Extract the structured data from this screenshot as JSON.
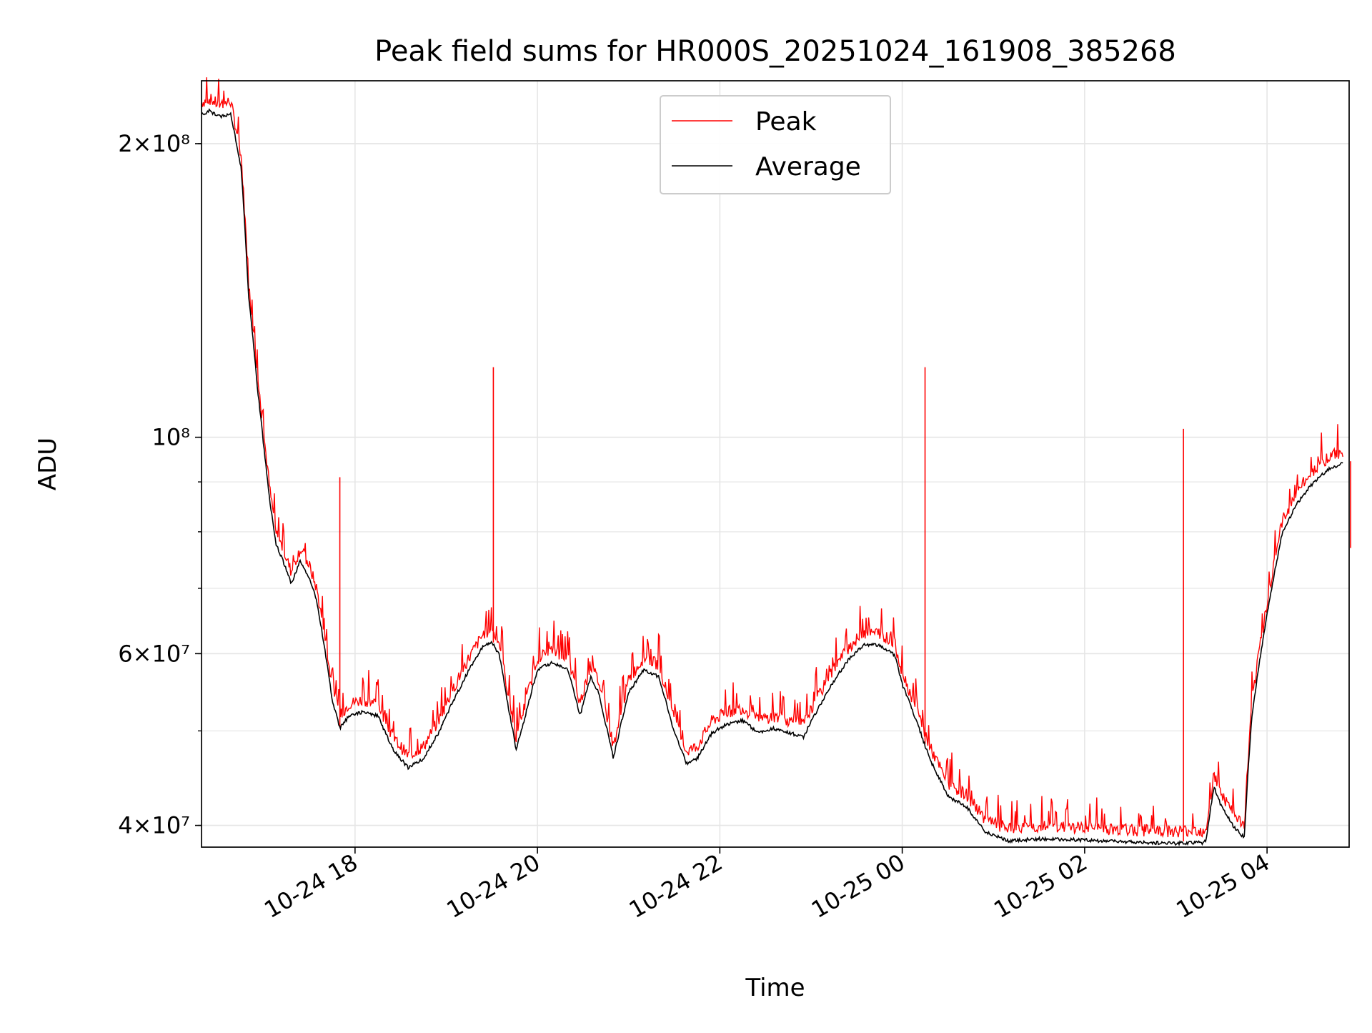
{
  "chart_data": {
    "type": "line",
    "title": "Peak field sums for HR000S_20251024_161908_385268",
    "xlabel": "Time",
    "ylabel": "ADU",
    "yscale": "log",
    "ylim": [
      38000000,
      232000000
    ],
    "xlim": [
      "2025-10-24 16:19",
      "2025-10-25 04:54"
    ],
    "x_tick_labels": [
      "10-24 18",
      "10-24 20",
      "10-24 22",
      "10-25 00",
      "10-25 02",
      "10-25 04"
    ],
    "x_tick_values": [
      "2025-10-24 18:00",
      "2025-10-24 20:00",
      "2025-10-24 22:00",
      "2025-10-25 00:00",
      "2025-10-25 02:00",
      "2025-10-25 04:00"
    ],
    "y_tick_labels": [
      "4×10⁷",
      "6×10⁷",
      "10⁸",
      "2×10⁸"
    ],
    "y_tick_values": [
      40000000,
      60000000,
      100000000,
      200000000
    ],
    "grid": true,
    "legend": {
      "placement": "top-center",
      "entries": [
        "Peak",
        "Average"
      ]
    },
    "series": [
      {
        "name": "Average",
        "color": "#000000",
        "points": [
          [
            "2025-10-24 16:19",
            215000000
          ],
          [
            "2025-10-24 16:24",
            217000000
          ],
          [
            "2025-10-24 16:30",
            214000000
          ],
          [
            "2025-10-24 16:36",
            215000000
          ],
          [
            "2025-10-24 16:38",
            216000000
          ],
          [
            "2025-10-24 16:45",
            190000000
          ],
          [
            "2025-10-24 16:50",
            140000000
          ],
          [
            "2025-10-24 16:56",
            112000000
          ],
          [
            "2025-10-24 17:00",
            98000000
          ],
          [
            "2025-10-24 17:04",
            86000000
          ],
          [
            "2025-10-24 17:08",
            78000000
          ],
          [
            "2025-10-24 17:14",
            74000000
          ],
          [
            "2025-10-24 17:18",
            71000000
          ],
          [
            "2025-10-24 17:24",
            75000000
          ],
          [
            "2025-10-24 17:30",
            72000000
          ],
          [
            "2025-10-24 17:35",
            68000000
          ],
          [
            "2025-10-24 17:40",
            61000000
          ],
          [
            "2025-10-24 17:45",
            54000000
          ],
          [
            "2025-10-24 17:50",
            50500000
          ],
          [
            "2025-10-24 17:56",
            52000000
          ],
          [
            "2025-10-24 18:05",
            52500000
          ],
          [
            "2025-10-24 18:15",
            52000000
          ],
          [
            "2025-10-24 18:25",
            48000000
          ],
          [
            "2025-10-24 18:35",
            46000000
          ],
          [
            "2025-10-24 18:45",
            47000000
          ],
          [
            "2025-10-24 18:55",
            50000000
          ],
          [
            "2025-10-24 19:05",
            54000000
          ],
          [
            "2025-10-24 19:15",
            58000000
          ],
          [
            "2025-10-24 19:25",
            61500000
          ],
          [
            "2025-10-24 19:30",
            62000000
          ],
          [
            "2025-10-24 19:35",
            60000000
          ],
          [
            "2025-10-24 19:40",
            54000000
          ],
          [
            "2025-10-24 19:46",
            48000000
          ],
          [
            "2025-10-24 19:52",
            52000000
          ],
          [
            "2025-10-24 20:00",
            58000000
          ],
          [
            "2025-10-24 20:10",
            59000000
          ],
          [
            "2025-10-24 20:20",
            58000000
          ],
          [
            "2025-10-24 20:28",
            52000000
          ],
          [
            "2025-10-24 20:35",
            57000000
          ],
          [
            "2025-10-24 20:40",
            55000000
          ],
          [
            "2025-10-24 20:50",
            47000000
          ],
          [
            "2025-10-24 21:00",
            55000000
          ],
          [
            "2025-10-24 21:10",
            58000000
          ],
          [
            "2025-10-24 21:20",
            57000000
          ],
          [
            "2025-10-24 21:30",
            50000000
          ],
          [
            "2025-10-24 21:38",
            46500000
          ],
          [
            "2025-10-24 21:45",
            47000000
          ],
          [
            "2025-10-24 21:55",
            50000000
          ],
          [
            "2025-10-24 22:05",
            51000000
          ],
          [
            "2025-10-24 22:15",
            51500000
          ],
          [
            "2025-10-24 22:25",
            50000000
          ],
          [
            "2025-10-24 22:35",
            50500000
          ],
          [
            "2025-10-24 22:45",
            50000000
          ],
          [
            "2025-10-24 22:55",
            49500000
          ],
          [
            "2025-10-24 23:05",
            53000000
          ],
          [
            "2025-10-24 23:15",
            56500000
          ],
          [
            "2025-10-24 23:25",
            59500000
          ],
          [
            "2025-10-24 23:35",
            61500000
          ],
          [
            "2025-10-24 23:45",
            61500000
          ],
          [
            "2025-10-24 23:55",
            60000000
          ],
          [
            "2025-10-25 00:00",
            56000000
          ],
          [
            "2025-10-25 00:08",
            52000000
          ],
          [
            "2025-10-25 00:18",
            47000000
          ],
          [
            "2025-10-25 00:30",
            43000000
          ],
          [
            "2025-10-25 00:42",
            42000000
          ],
          [
            "2025-10-25 00:55",
            39500000
          ],
          [
            "2025-10-25 01:10",
            38700000
          ],
          [
            "2025-10-25 01:30",
            38900000
          ],
          [
            "2025-10-25 02:00",
            38800000
          ],
          [
            "2025-10-25 02:30",
            38600000
          ],
          [
            "2025-10-25 03:00",
            38500000
          ],
          [
            "2025-10-25 03:15",
            38600000
          ],
          [
            "2025-10-25 03:18",
            38500000
          ],
          [
            "2025-10-25 03:20",
            38800000
          ],
          [
            "2025-10-25 03:25",
            44000000
          ],
          [
            "2025-10-25 03:30",
            42000000
          ],
          [
            "2025-10-25 03:38",
            40000000
          ],
          [
            "2025-10-25 03:45",
            39000000
          ],
          [
            "2025-10-25 03:50",
            52000000
          ],
          [
            "2025-10-25 04:00",
            66000000
          ],
          [
            "2025-10-25 04:10",
            80000000
          ],
          [
            "2025-10-25 04:20",
            86000000
          ],
          [
            "2025-10-25 04:30",
            90000000
          ],
          [
            "2025-10-25 04:40",
            93000000
          ],
          [
            "2025-10-25 04:50",
            94500000
          ]
        ]
      }
    ],
    "peak_spikes": [
      [
        "2025-10-24 17:50",
        91000000
      ],
      [
        "2025-10-24 19:31",
        118000000
      ],
      [
        "2025-10-25 00:15",
        118000000
      ],
      [
        "2025-10-25 03:05",
        102000000
      ],
      [
        "2025-10-25 04:55",
        77000000
      ]
    ]
  }
}
